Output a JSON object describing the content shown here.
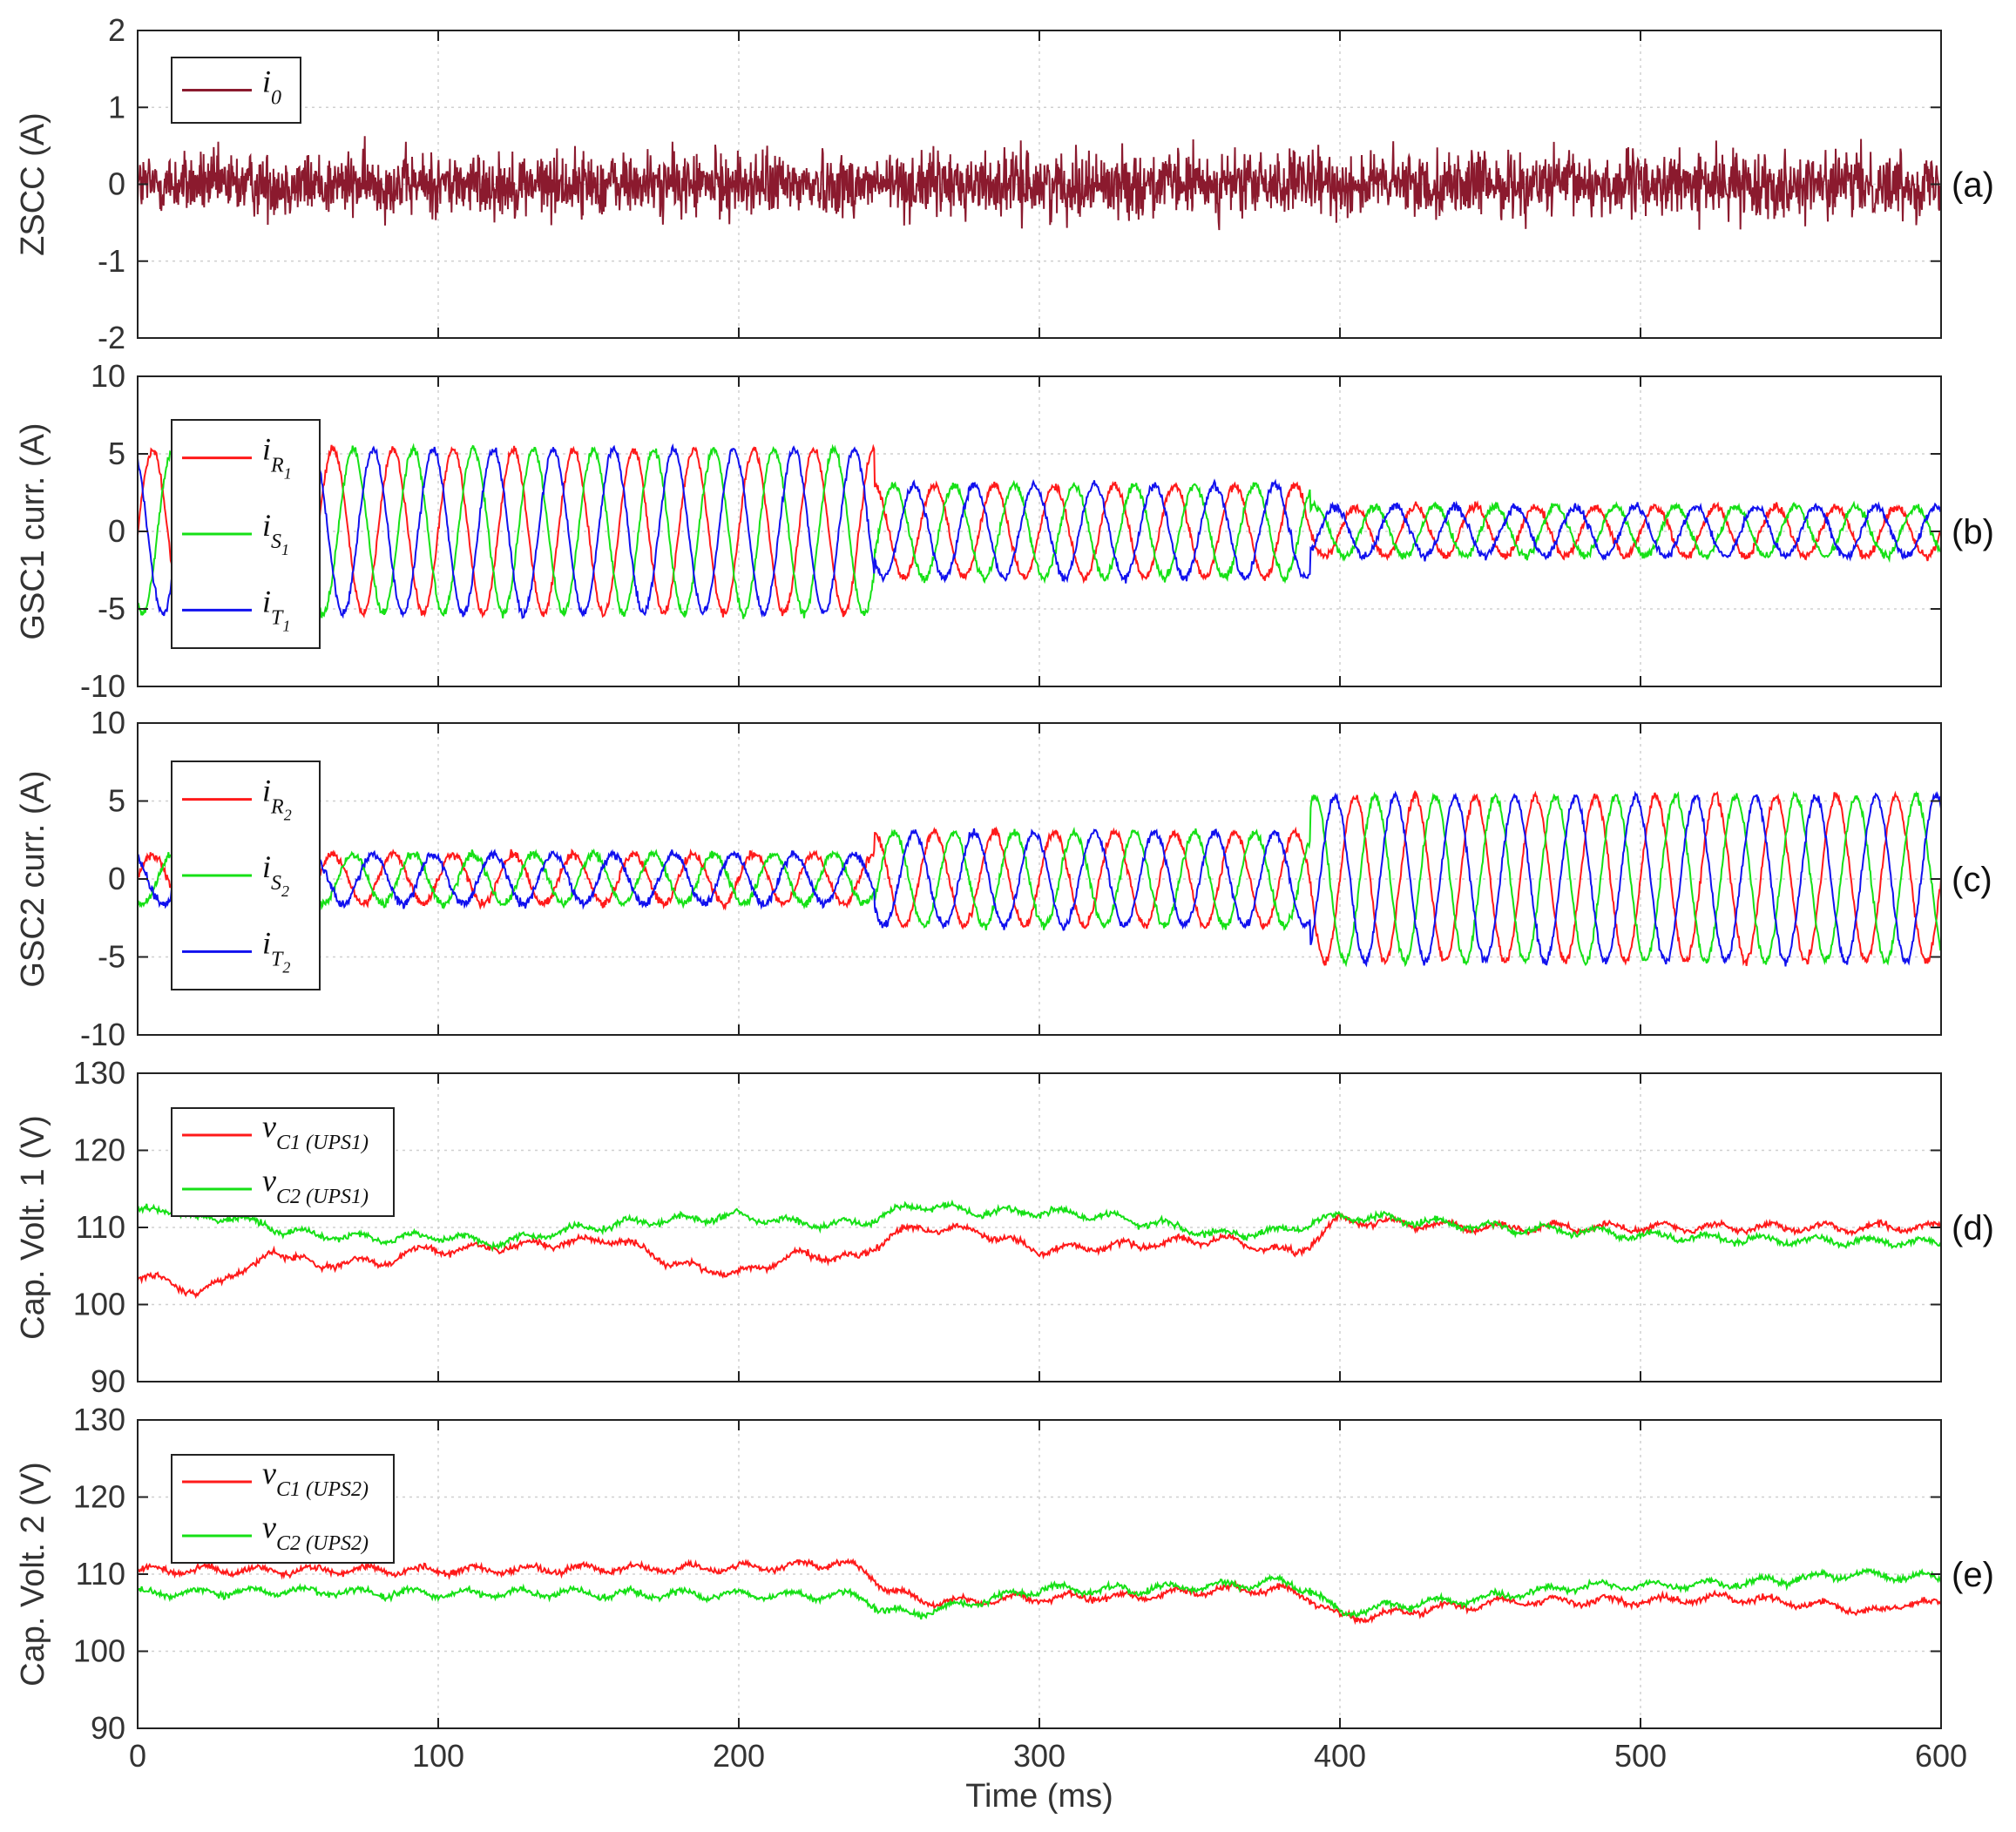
{
  "chart_data": [
    {
      "type": "line",
      "panel_tag": "(a)",
      "ylabel": "ZSCC (A)",
      "xlim": [
        0,
        600
      ],
      "ylim": [
        -2,
        2
      ],
      "yticks": [
        -2,
        -1,
        0,
        1,
        2
      ],
      "grid": true,
      "legend_placement": "top-left",
      "series": [
        {
          "name": "i",
          "sub": "0",
          "color": "#8b1a2e",
          "kind": "noise",
          "amplitude": 0.35,
          "segments": [
            [
              0,
              600,
              0
            ]
          ]
        }
      ]
    },
    {
      "type": "line",
      "panel_tag": "(b)",
      "ylabel": "GSC1 curr. (A)",
      "xlim": [
        0,
        600
      ],
      "ylim": [
        -10,
        10
      ],
      "yticks": [
        -10,
        -5,
        0,
        5,
        10
      ],
      "grid": true,
      "legend_placement": "left",
      "frequency_hz": 50,
      "series": [
        {
          "name": "i",
          "sub": "R",
          "subsub": "1",
          "color": "#ff1a1a",
          "kind": "sine",
          "phase_deg": 0,
          "amplitude_segments": [
            [
              0,
              245,
              5.3
            ],
            [
              245,
              390,
              3.0
            ],
            [
              390,
              600,
              1.6
            ]
          ]
        },
        {
          "name": "i",
          "sub": "S",
          "subsub": "1",
          "color": "#16e016",
          "kind": "sine",
          "phase_deg": -120,
          "amplitude_segments": [
            [
              0,
              245,
              5.3
            ],
            [
              245,
              390,
              3.0
            ],
            [
              390,
              600,
              1.6
            ]
          ]
        },
        {
          "name": "i",
          "sub": "T",
          "subsub": "1",
          "color": "#1111ee",
          "kind": "sine",
          "phase_deg": 120,
          "amplitude_segments": [
            [
              0,
              245,
              5.3
            ],
            [
              245,
              390,
              3.0
            ],
            [
              390,
              600,
              1.6
            ]
          ]
        }
      ]
    },
    {
      "type": "line",
      "panel_tag": "(c)",
      "ylabel": "GSC2 curr. (A)",
      "xlim": [
        0,
        600
      ],
      "ylim": [
        -10,
        10
      ],
      "yticks": [
        -10,
        -5,
        0,
        5,
        10
      ],
      "grid": true,
      "legend_placement": "left",
      "frequency_hz": 50,
      "series": [
        {
          "name": "i",
          "sub": "R",
          "subsub": "2",
          "color": "#ff1a1a",
          "kind": "sine",
          "phase_deg": 0,
          "amplitude_segments": [
            [
              0,
              245,
              1.6
            ],
            [
              245,
              390,
              3.0
            ],
            [
              390,
              600,
              5.3
            ]
          ]
        },
        {
          "name": "i",
          "sub": "S",
          "subsub": "2",
          "color": "#16e016",
          "kind": "sine",
          "phase_deg": -120,
          "amplitude_segments": [
            [
              0,
              245,
              1.6
            ],
            [
              245,
              390,
              3.0
            ],
            [
              390,
              600,
              5.3
            ]
          ]
        },
        {
          "name": "i",
          "sub": "T",
          "subsub": "2",
          "color": "#1111ee",
          "kind": "sine",
          "phase_deg": 120,
          "amplitude_segments": [
            [
              0,
              245,
              1.6
            ],
            [
              245,
              390,
              3.0
            ],
            [
              390,
              600,
              5.3
            ]
          ]
        }
      ]
    },
    {
      "type": "line",
      "panel_tag": "(d)",
      "ylabel": "Cap. Volt. 1 (V)",
      "xlim": [
        0,
        600
      ],
      "ylim": [
        90,
        130
      ],
      "yticks": [
        90,
        100,
        110,
        120,
        130
      ],
      "grid": true,
      "legend_placement": "top-left",
      "series": [
        {
          "name": "v",
          "sub": "C1 (UPS1)",
          "color": "#ff1a1a",
          "kind": "trace",
          "x": [
            0,
            10,
            20,
            30,
            40,
            45,
            55,
            60,
            70,
            80,
            90,
            100,
            120,
            140,
            160,
            180,
            200,
            220,
            240,
            250,
            260,
            280,
            300,
            320,
            340,
            360,
            380,
            385,
            400,
            420,
            450,
            500,
            550,
            600
          ],
          "y": [
            103,
            103.5,
            101,
            104,
            105,
            107,
            106,
            104.5,
            106,
            105,
            107,
            107,
            107.5,
            108,
            108.5,
            105,
            104,
            106.5,
            106,
            109,
            110,
            109.5,
            107,
            107.5,
            108,
            108.5,
            107,
            106.5,
            111,
            110.5,
            110,
            110,
            110,
            110
          ]
        },
        {
          "name": "v",
          "sub": "C2 (UPS1)",
          "color": "#16e016",
          "kind": "trace",
          "x": [
            0,
            10,
            20,
            30,
            40,
            50,
            60,
            80,
            100,
            120,
            140,
            160,
            180,
            200,
            220,
            240,
            260,
            280,
            300,
            320,
            340,
            360,
            380,
            400,
            420,
            450,
            480,
            500,
            530,
            560,
            600
          ],
          "y": [
            112,
            112.5,
            111,
            111.5,
            110.5,
            109.5,
            109,
            108.5,
            109,
            108,
            109.5,
            110.5,
            111,
            111.5,
            110.5,
            110.5,
            113,
            112,
            112,
            111.5,
            110.5,
            109,
            109.5,
            111.5,
            111,
            110,
            109.5,
            109,
            108.5,
            108.3,
            108
          ]
        }
      ]
    },
    {
      "type": "line",
      "panel_tag": "(e)",
      "ylabel": "Cap. Volt. 2 (V)",
      "xlabel": "Time (ms)",
      "xlim": [
        0,
        600
      ],
      "ylim": [
        90,
        130
      ],
      "yticks": [
        90,
        100,
        110,
        120,
        130
      ],
      "xticks": [
        0,
        100,
        200,
        300,
        400,
        500,
        600
      ],
      "grid": true,
      "legend_placement": "top-left",
      "series": [
        {
          "name": "v",
          "sub": "C1 (UPS2)",
          "color": "#ff1a1a",
          "kind": "trace",
          "x": [
            0,
            50,
            100,
            150,
            200,
            235,
            240,
            250,
            260,
            280,
            300,
            330,
            360,
            380,
            390,
            400,
            410,
            430,
            460,
            500,
            530,
            560,
            580,
            590,
            600
          ],
          "y": [
            110.5,
            110.5,
            110.5,
            110.7,
            110.8,
            111.5,
            110.8,
            108,
            106.5,
            106.5,
            107,
            107,
            108,
            108,
            107,
            104.5,
            104.5,
            105.5,
            106.5,
            106.5,
            107,
            106,
            105,
            106.5,
            106
          ]
        },
        {
          "name": "v",
          "sub": "C2 (UPS2)",
          "color": "#16e016",
          "kind": "trace",
          "x": [
            0,
            50,
            100,
            150,
            200,
            240,
            250,
            260,
            280,
            300,
            330,
            360,
            380,
            390,
            400,
            420,
            450,
            480,
            510,
            540,
            570,
            600
          ],
          "y": [
            107.5,
            107.8,
            107.5,
            107.5,
            107.3,
            107.2,
            105,
            105,
            106.5,
            108,
            108,
            108.5,
            109,
            108,
            105,
            106,
            107,
            108.5,
            108.5,
            109,
            110,
            109.5
          ]
        }
      ]
    }
  ]
}
